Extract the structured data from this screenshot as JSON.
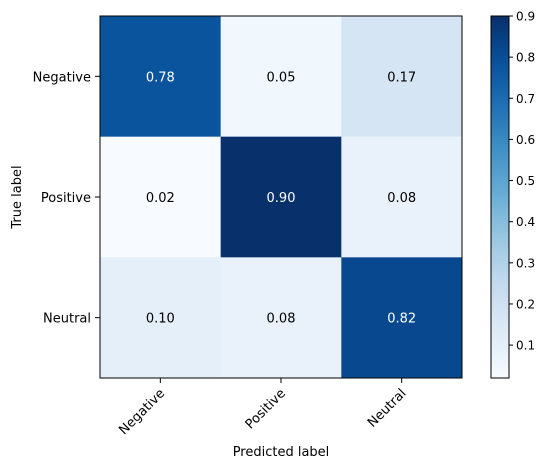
{
  "chart_data": {
    "type": "heatmap",
    "xlabel": "Predicted label",
    "ylabel": "True label",
    "x_categories": [
      "Negative",
      "Positive",
      "Neutral"
    ],
    "y_categories": [
      "Negative",
      "Positive",
      "Neutral"
    ],
    "values": [
      [
        0.78,
        0.05,
        0.17
      ],
      [
        0.02,
        0.9,
        0.08
      ],
      [
        0.1,
        0.08,
        0.82
      ]
    ],
    "cell_labels": [
      [
        "0.78",
        "0.05",
        "0.17"
      ],
      [
        "0.02",
        "0.90",
        "0.08"
      ],
      [
        "0.10",
        "0.08",
        "0.82"
      ]
    ],
    "colormap": "Blues",
    "color_range": [
      0.02,
      0.9
    ],
    "colorbar": {
      "ticks": [
        0.1,
        0.2,
        0.3,
        0.4,
        0.5,
        0.6,
        0.7,
        0.8,
        0.9
      ],
      "tick_labels": [
        "0.1",
        "0.2",
        "0.3",
        "0.4",
        "0.5",
        "0.6",
        "0.7",
        "0.8",
        "0.9"
      ]
    },
    "x_tick_rotation_deg": 45,
    "legend": "colorbar-right",
    "grid": false
  }
}
